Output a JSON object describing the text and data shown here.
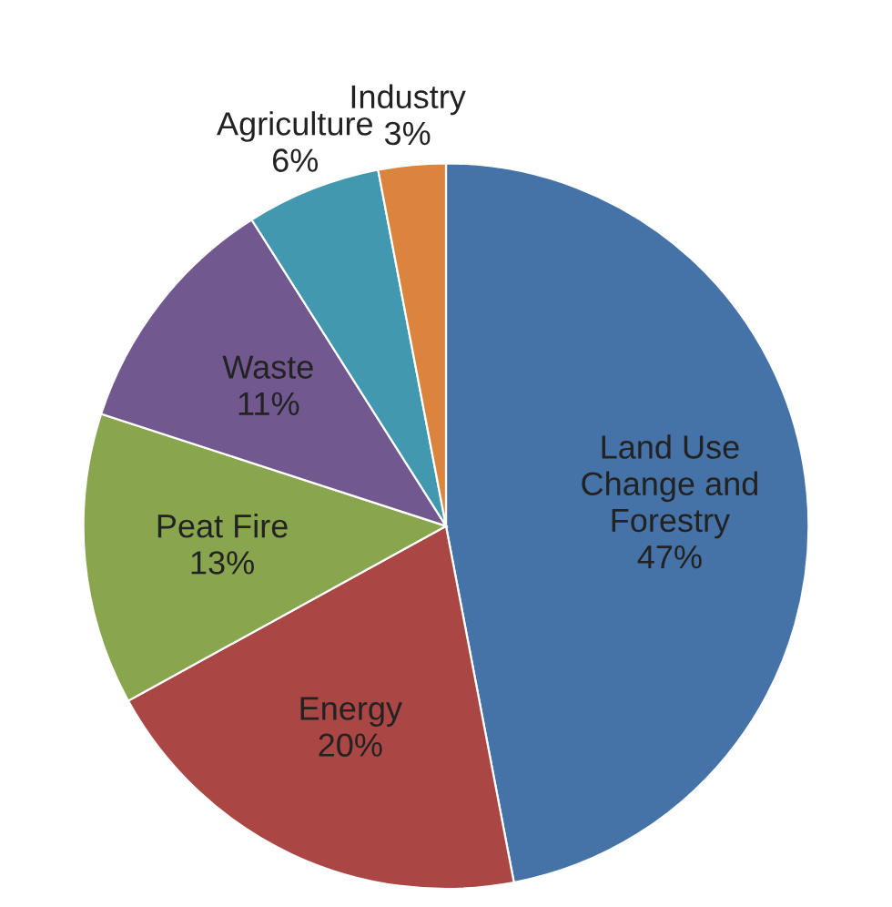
{
  "chart_data": {
    "type": "pie",
    "categories": [
      "Land Use\nChange and\nForestry",
      "Energy",
      "Peat Fire",
      "Waste",
      "Agriculture",
      "Industry"
    ],
    "values": [
      47,
      20,
      13,
      11,
      6,
      3
    ],
    "colors": [
      "#4572a7",
      "#aa4643",
      "#89a54e",
      "#71588f",
      "#4198af",
      "#db843d"
    ],
    "value_labels": [
      "47%",
      "20%",
      "13%",
      "11%",
      "6%",
      "3%"
    ],
    "legend": false
  }
}
